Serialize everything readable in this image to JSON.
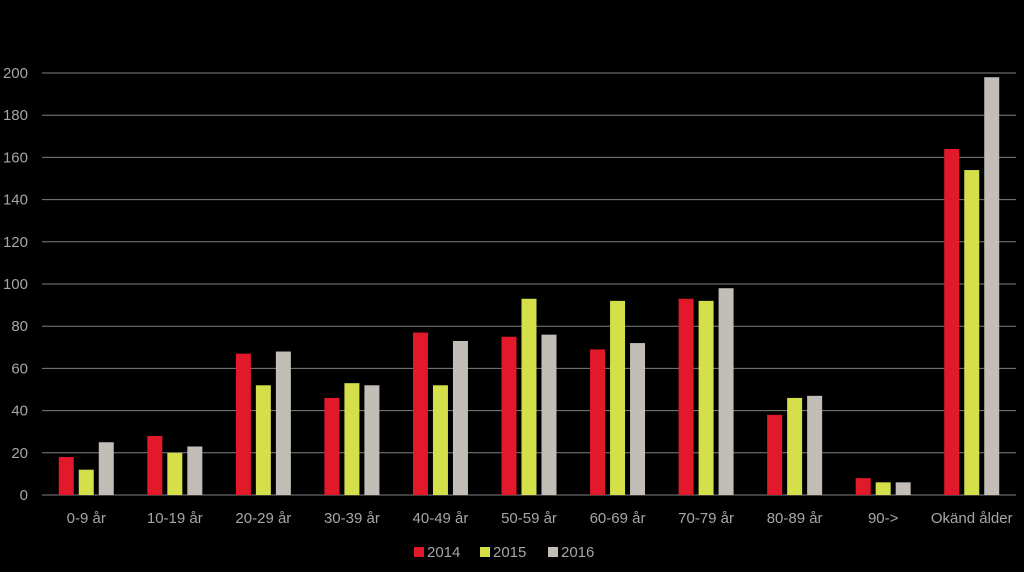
{
  "chart_data": {
    "type": "bar",
    "title": "",
    "xlabel": "",
    "ylabel": "",
    "ylim": [
      0,
      200
    ],
    "yticks": [
      0,
      20,
      40,
      60,
      80,
      100,
      120,
      140,
      160,
      180,
      200
    ],
    "grid": true,
    "legend_position": "bottom",
    "categories": [
      "0-9 år",
      "10-19 år",
      "20-29 år",
      "30-39 år",
      "40-49 år",
      "50-59 år",
      "60-69 år",
      "70-79 år",
      "80-89 år",
      "90->",
      "Okänd ålder"
    ],
    "series": [
      {
        "name": "2014",
        "color": "#e2182b",
        "values": [
          18,
          28,
          67,
          46,
          77,
          75,
          69,
          93,
          38,
          8,
          164
        ]
      },
      {
        "name": "2015",
        "color": "#d4df4a",
        "values": [
          12,
          20,
          52,
          53,
          52,
          93,
          92,
          92,
          46,
          6,
          154
        ]
      },
      {
        "name": "2016",
        "color": "#c2bdb6",
        "values": [
          25,
          23,
          68,
          52,
          73,
          76,
          72,
          98,
          47,
          6,
          198
        ]
      }
    ]
  }
}
